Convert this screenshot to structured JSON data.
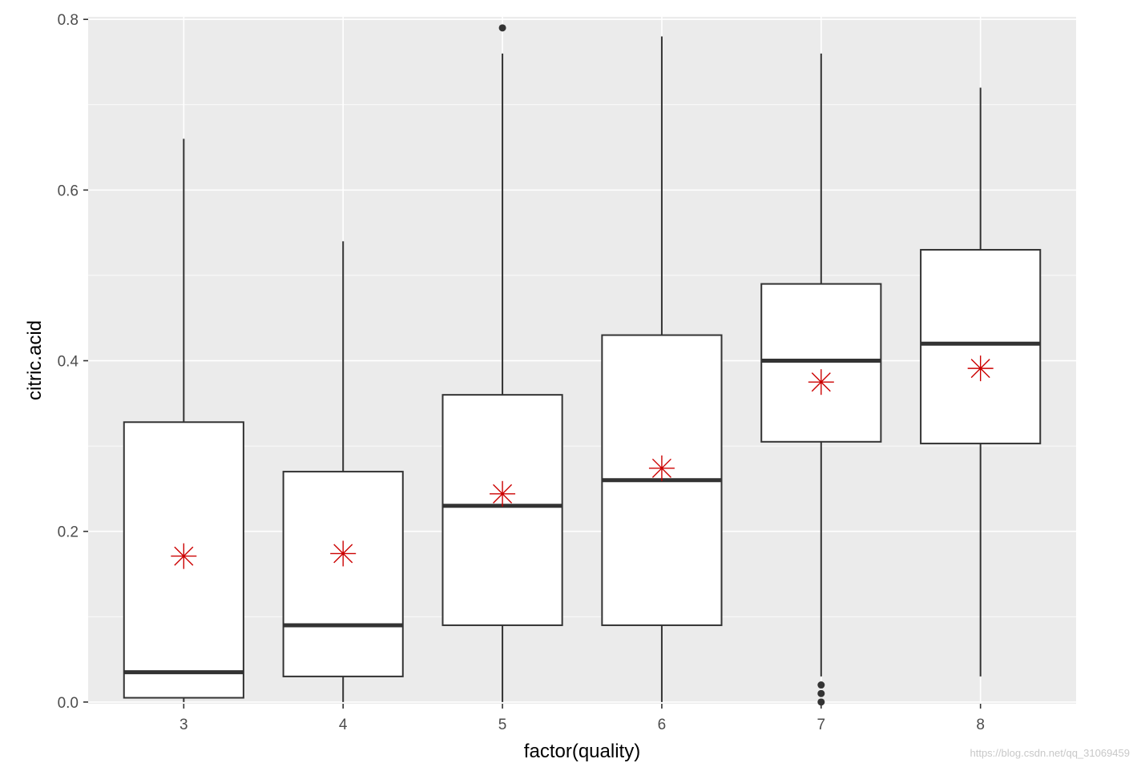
{
  "chart_data": {
    "type": "boxplot",
    "xlabel": "factor(quality)",
    "ylabel": "citric.acid",
    "categories": [
      "3",
      "4",
      "5",
      "6",
      "7",
      "8"
    ],
    "ylim": [
      -0.002,
      0.803
    ],
    "yticks": [
      "0.0",
      "0.2",
      "0.4",
      "0.6",
      "0.8"
    ],
    "boxes": [
      {
        "name": "3",
        "whisker_low": 0.0,
        "q1": 0.005,
        "median": 0.035,
        "q3": 0.328,
        "whisker_high": 0.66,
        "mean": 0.171,
        "outliers": []
      },
      {
        "name": "4",
        "whisker_low": 0.0,
        "q1": 0.03,
        "median": 0.09,
        "q3": 0.27,
        "whisker_high": 0.54,
        "mean": 0.174,
        "outliers": []
      },
      {
        "name": "5",
        "whisker_low": 0.0,
        "q1": 0.09,
        "median": 0.23,
        "q3": 0.36,
        "whisker_high": 0.76,
        "mean": 0.244,
        "outliers": [
          0.79
        ]
      },
      {
        "name": "6",
        "whisker_low": 0.0,
        "q1": 0.09,
        "median": 0.26,
        "q3": 0.43,
        "whisker_high": 0.78,
        "mean": 0.274,
        "outliers": []
      },
      {
        "name": "7",
        "whisker_low": 0.03,
        "q1": 0.305,
        "median": 0.4,
        "q3": 0.49,
        "whisker_high": 0.76,
        "mean": 0.375,
        "outliers": [
          0.02,
          0.01,
          0.0
        ]
      },
      {
        "name": "8",
        "whisker_low": 0.03,
        "q1": 0.303,
        "median": 0.42,
        "q3": 0.53,
        "whisker_high": 0.72,
        "mean": 0.391,
        "outliers": []
      }
    ],
    "colors": {
      "panel": "#ebebeb",
      "grid": "#ffffff",
      "box_line": "#333333",
      "mean_marker": "#cc0000"
    },
    "mean_marker": "asterisk",
    "grid": true
  },
  "watermark": "https://blog.csdn.net/qq_31069459"
}
